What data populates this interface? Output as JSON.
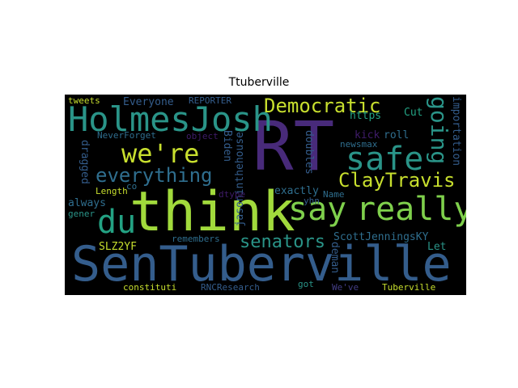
{
  "title": "Ttuberville",
  "colors": {
    "background": "#000000",
    "yellow": "#c8df2e",
    "green": "#7fd04c",
    "lightgreen": "#a1da3c",
    "teal": "#2a9488",
    "tealgreen": "#23a283",
    "blue": "#2f6e8e",
    "slate": "#345d8c",
    "purple": "#482a7a",
    "darkpurple": "#3f1c6a",
    "indigo": "#433e85"
  },
  "words": {
    "senTuberville": "SenTuberville",
    "think": "think",
    "rt": "RT",
    "holmesJosh": "HolmesJosh",
    "weRe": "we're",
    "safe": "safe",
    "say": "say",
    "really": "really",
    "du": "du",
    "democratic": "Democratic",
    "clayTravis": "ClayTravis",
    "everything": "everything",
    "senators": "senators",
    "going": "going",
    "scottJenningsKY": "ScottJenningsKY",
    "jasoninthehouse": "jasoninthehouse",
    "importation": "importation",
    "doubles": "doubles",
    "biden": "Biden",
    "dragged": "dragged",
    "demand": "deman",
    "tweets": "tweets",
    "everyone": "Everyone",
    "reporter": "REPORTER",
    "cut": "Cut",
    "https": "https",
    "kick": "kick",
    "roll": "roll",
    "neverForget": "NeverForget",
    "object": "object",
    "newsmax": "newsmax",
    "co": "co",
    "dtype": "dtype",
    "exactly": "exactly",
    "always": "always",
    "length": "Length",
    "name": "Name",
    "yhn": "yhn",
    "gener": "gener",
    "slz2yf": "SLZ2YF",
    "remembers": "remembers",
    "let": "Let",
    "constituti": "constituti",
    "rncResearch": "RNCResearch",
    "got": "got",
    "weVe": "We've",
    "tuberville": "Tuberville"
  }
}
